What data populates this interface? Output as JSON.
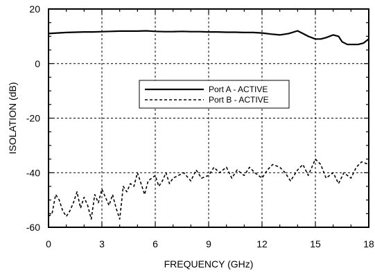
{
  "chart_data": {
    "type": "line",
    "title": "",
    "xlabel": "FREQUENCY (GHz)",
    "ylabel": "ISOLATION (dB)",
    "xlim": [
      0,
      18
    ],
    "ylim": [
      -60,
      20
    ],
    "x_ticks": [
      "0",
      "3",
      "6",
      "9",
      "12",
      "15",
      "18"
    ],
    "y_ticks": [
      "20",
      "0",
      "-20",
      "-40",
      "-60"
    ],
    "x_tick_values": [
      0,
      3,
      6,
      9,
      12,
      15,
      18
    ],
    "y_tick_values": [
      20,
      0,
      -20,
      -40,
      -60
    ],
    "grid": true,
    "legend_position": "center",
    "series": [
      {
        "name": "Port A - ACTIVE",
        "style": "solid",
        "x": [
          0,
          0.5,
          1,
          1.5,
          2,
          2.5,
          3,
          3.5,
          4,
          4.5,
          5,
          5.5,
          6,
          6.5,
          7,
          7.5,
          8,
          8.5,
          9,
          9.5,
          10,
          10.5,
          11,
          11.5,
          12,
          12.5,
          13,
          13.5,
          14,
          14.3,
          14.6,
          15,
          15.3,
          15.6,
          16,
          16.3,
          16.5,
          16.8,
          17,
          17.4,
          17.7,
          18
        ],
        "y": [
          11,
          11.2,
          11.4,
          11.5,
          11.6,
          11.6,
          11.7,
          11.8,
          11.9,
          11.9,
          11.9,
          12,
          11.8,
          11.7,
          11.7,
          11.8,
          11.7,
          11.7,
          11.6,
          11.6,
          11.5,
          11.5,
          11.4,
          11.4,
          11.2,
          10.8,
          10.5,
          11,
          12,
          11,
          10,
          9,
          9,
          9.5,
          10.5,
          10,
          8,
          7,
          7,
          7,
          7.5,
          9
        ]
      },
      {
        "name": "Port B - ACTIVE",
        "style": "dashed",
        "x": [
          0,
          0.2,
          0.4,
          0.6,
          0.8,
          1,
          1.2,
          1.4,
          1.6,
          1.8,
          2,
          2.2,
          2.4,
          2.6,
          2.8,
          3,
          3.2,
          3.4,
          3.6,
          3.8,
          4,
          4.2,
          4.4,
          4.6,
          4.8,
          5,
          5.2,
          5.4,
          5.6,
          5.8,
          6,
          6.2,
          6.4,
          6.6,
          6.8,
          7,
          7.3,
          7.6,
          8,
          8.3,
          8.6,
          9,
          9.3,
          9.6,
          10,
          10.3,
          10.6,
          11,
          11.3,
          11.6,
          12,
          12.3,
          12.6,
          13,
          13.3,
          13.6,
          14,
          14.3,
          14.6,
          15,
          15.3,
          15.6,
          16,
          16.3,
          16.6,
          17,
          17.3,
          17.6,
          18
        ],
        "y": [
          -56,
          -55,
          -48,
          -50,
          -54,
          -56,
          -54,
          -51,
          -47,
          -53,
          -49,
          -52,
          -57,
          -48,
          -51,
          -46,
          -49,
          -52,
          -48,
          -53,
          -57,
          -45,
          -47,
          -44,
          -45,
          -40,
          -44,
          -48,
          -43,
          -42,
          -41,
          -45,
          -43,
          -40,
          -44,
          -42,
          -41,
          -40,
          -43,
          -39,
          -42,
          -41,
          -38,
          -40,
          -38,
          -42,
          -39,
          -41,
          -38,
          -40,
          -42,
          -39,
          -37,
          -38,
          -40,
          -43,
          -39,
          -37,
          -41,
          -35,
          -37,
          -42,
          -40,
          -44,
          -40,
          -42,
          -38,
          -36,
          -37
        ]
      }
    ]
  }
}
